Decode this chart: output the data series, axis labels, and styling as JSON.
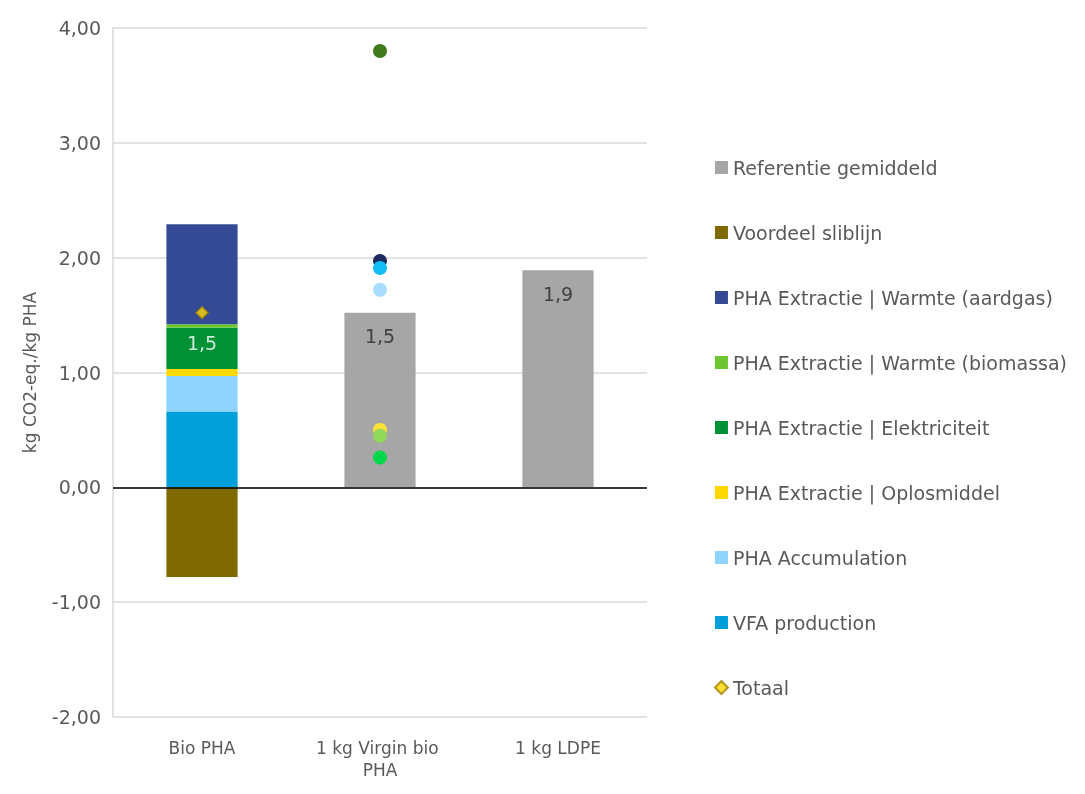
{
  "chart_data": {
    "type": "bar",
    "stacked": true,
    "ylabel": "kg CO2-eq./kg PHA",
    "categories": [
      "Bio PHA",
      "1 kg Virgin bio PHA",
      "1 kg LDPE"
    ],
    "ylim": [
      -2,
      4
    ],
    "yticks": [
      {
        "value": -2,
        "label": "-2,00"
      },
      {
        "value": -1,
        "label": "-1,00"
      },
      {
        "value": 0,
        "label": "0,00"
      },
      {
        "value": 1,
        "label": "1,00"
      },
      {
        "value": 2,
        "label": "2,00"
      },
      {
        "value": 3,
        "label": "3,00"
      },
      {
        "value": 4,
        "label": "4,00"
      }
    ],
    "grid": "y",
    "legend": "right",
    "ref_lines": [
      {
        "axis": "y",
        "value": 0,
        "color": "#000000"
      }
    ],
    "series": [
      {
        "name": "VFA production",
        "color": "#009fda",
        "values": [
          0.66,
          null,
          null
        ]
      },
      {
        "name": "PHA Accumulation",
        "color": "#8fd3ff",
        "values": [
          0.31,
          null,
          null
        ]
      },
      {
        "name": "PHA Extractie | Oplosmiddel",
        "color": "#ffd800",
        "values": [
          0.06,
          null,
          null
        ]
      },
      {
        "name": "PHA Extractie | Elektriciteit",
        "color": "#009035",
        "values": [
          0.36,
          null,
          null
        ]
      },
      {
        "name": "PHA Extractie | Warmte (biomassa)",
        "color": "#6cc631",
        "values": [
          0.03,
          null,
          null
        ]
      },
      {
        "name": "PHA Extractie | Warmte (aardgas)",
        "color": "#354a94",
        "values": [
          0.87,
          null,
          null
        ]
      },
      {
        "name": "Voordeel sliblijn",
        "color": "#7f6a00",
        "values": [
          -0.78,
          null,
          null
        ]
      },
      {
        "name": "Referentie gemiddeld",
        "color": "#a6a6a6",
        "values": [
          null,
          1.52,
          1.89
        ],
        "value_labels": [
          null,
          "1,5",
          "1,9"
        ]
      },
      {
        "name": "Totaal",
        "type": "scatter",
        "marker": "diamond",
        "color": "#ffd800",
        "x": [
          "Bio PHA"
        ],
        "values": [
          1.52
        ],
        "value_labels": [
          "1,5"
        ]
      },
      {
        "type": "scatter",
        "marker": "circle",
        "x": [
          "1 kg Virgin bio PHA",
          "1 kg Virgin bio PHA",
          "1 kg Virgin bio PHA",
          "1 kg Virgin bio PHA",
          "1 kg Virgin bio PHA",
          "1 kg Virgin bio PHA",
          "1 kg Virgin bio PHA"
        ],
        "values": [
          3.8,
          1.97,
          1.91,
          1.72,
          0.5,
          0.45,
          0.26
        ],
        "colors": [
          "#3f7a1d",
          "#1b2a5c",
          "#13bdf8",
          "#a8ddff",
          "#ffe135",
          "#92d85a",
          "#00d84a"
        ]
      }
    ]
  }
}
